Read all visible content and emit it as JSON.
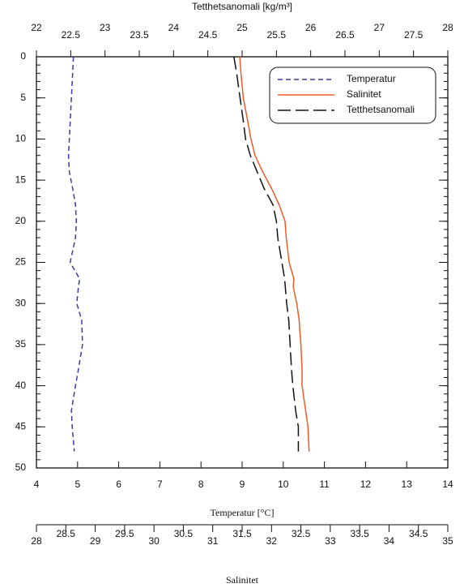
{
  "chart_data": {
    "type": "line",
    "depth": [
      0,
      2,
      5,
      8,
      10,
      12,
      14,
      16,
      18,
      20,
      22,
      25,
      27,
      28,
      30,
      32,
      35,
      38,
      40,
      43,
      45,
      48
    ],
    "ylim": [
      0,
      50
    ],
    "yticks": [
      0,
      5,
      10,
      15,
      20,
      25,
      30,
      35,
      40,
      45,
      50
    ],
    "y_minor_step": 1,
    "y_inverted": true,
    "x_axes": {
      "temperature": {
        "position": "bottom",
        "label": "Temperatur [°C]",
        "xlim": [
          4,
          14
        ],
        "xticks": [
          4,
          5,
          6,
          7,
          8,
          9,
          10,
          11,
          12,
          13,
          14
        ]
      },
      "density": {
        "position": "top",
        "label": "Tetthetsanomali [kg/m³]",
        "xlim": [
          22,
          28
        ],
        "xticks": [
          22,
          22.5,
          23,
          23.5,
          24,
          24.5,
          25,
          25.5,
          26,
          26.5,
          27,
          27.5,
          28
        ]
      },
      "salinity": {
        "position": "below",
        "label": "Salinitet",
        "xlim": [
          28,
          35
        ],
        "xticks": [
          28,
          28.5,
          29,
          29.5,
          30,
          30.5,
          31,
          31.5,
          32,
          32.5,
          33,
          33.5,
          34,
          34.5,
          35
        ]
      }
    },
    "series": [
      {
        "name": "Temperatur",
        "axis": "temperature",
        "color": "#3a3aa8",
        "dash": "short",
        "values": [
          4.9,
          4.88,
          4.85,
          4.82,
          4.8,
          4.78,
          4.8,
          4.88,
          4.95,
          4.97,
          4.95,
          4.82,
          5.05,
          5.02,
          4.98,
          5.1,
          5.12,
          5.02,
          4.95,
          4.85,
          4.87,
          4.92
        ]
      },
      {
        "name": "Salinitet",
        "axis": "salinity",
        "color": "#f05a28",
        "dash": "solid",
        "values": [
          31.46,
          31.48,
          31.52,
          31.6,
          31.65,
          31.72,
          31.85,
          32.0,
          32.13,
          32.23,
          32.25,
          32.3,
          32.38,
          32.37,
          32.43,
          32.47,
          32.5,
          32.52,
          32.52,
          32.58,
          32.62,
          32.64
        ]
      },
      {
        "name": "Tetthetsanomali",
        "axis": "density",
        "color": "#111111",
        "dash": "long",
        "values": [
          24.88,
          24.92,
          24.97,
          25.02,
          25.05,
          25.12,
          25.22,
          25.32,
          25.45,
          25.5,
          25.52,
          25.58,
          25.62,
          25.63,
          25.65,
          25.68,
          25.7,
          25.72,
          25.74,
          25.78,
          25.82,
          25.82
        ]
      }
    ],
    "legend": "upper right"
  }
}
